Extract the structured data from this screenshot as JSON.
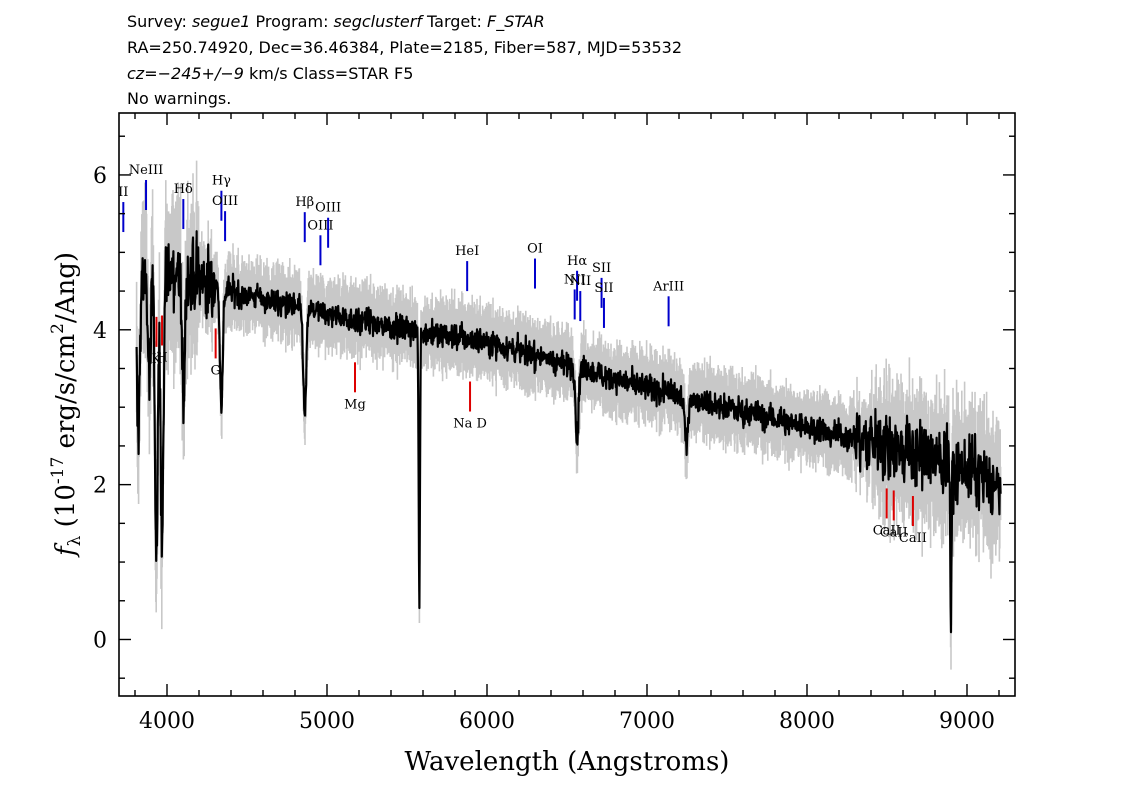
{
  "header": {
    "line1": {
      "survey_label": "Survey: ",
      "survey": "segue1",
      "program_label": " Program: ",
      "program": "segclusterf",
      "target_label": " Target: ",
      "target": "F_STAR"
    },
    "line2": "RA=250.74920, Dec=36.46384, Plate=2185, Fiber=587, MJD=53532",
    "line3": {
      "cz": "cz=−245+/−9",
      "rest": " km/s Class=STAR F5"
    },
    "line4": "No warnings."
  },
  "chart_data": {
    "type": "line",
    "xlabel": "Wavelength (Angstroms)",
    "ylabel": "fλ (10^-17 erg/s/cm^2/Ang)",
    "xlim": [
      3700,
      9300
    ],
    "ylim": [
      -0.73,
      6.8
    ],
    "x_ticks": [
      4000,
      5000,
      6000,
      7000,
      8000,
      9000
    ],
    "y_ticks": [
      0,
      2,
      4,
      6
    ],
    "x_tick_labels": [
      "4000",
      "5000",
      "6000",
      "7000",
      "8000",
      "9000"
    ],
    "y_tick_labels": [
      "0",
      "2",
      "4",
      "6"
    ],
    "grid": false,
    "series": [
      {
        "role": "flux",
        "color": "#000000",
        "continuum": [
          [
            3800,
            4.65
          ],
          [
            4000,
            4.75
          ],
          [
            4500,
            4.45
          ],
          [
            5000,
            4.2
          ],
          [
            5500,
            4.0
          ],
          [
            6000,
            3.85
          ],
          [
            6500,
            3.55
          ],
          [
            7000,
            3.25
          ],
          [
            7500,
            3.0
          ],
          [
            8000,
            2.75
          ],
          [
            8500,
            2.5
          ],
          [
            9000,
            2.2
          ],
          [
            9200,
            1.95
          ]
        ],
        "absorption_features": [
          {
            "x": 3820,
            "y": 2.55
          },
          {
            "x": 3890,
            "y": 3.35
          },
          {
            "x": 3934,
            "y": 0.95
          },
          {
            "x": 3969,
            "y": 1.45
          },
          {
            "x": 4102,
            "y": 3.1
          },
          {
            "x": 4340,
            "y": 3.05
          },
          {
            "x": 4861,
            "y": 2.85
          },
          {
            "x": 5577,
            "y": 0.5
          },
          {
            "x": 6563,
            "y": 2.6
          },
          {
            "x": 7246,
            "y": 2.5
          },
          {
            "x": 8900,
            "y": 0.05
          }
        ]
      },
      {
        "role": "error envelope",
        "color": "#c8c8c8",
        "typical_spread": 0.3
      }
    ],
    "emission_lines": [
      {
        "label": "II",
        "x": 3727
      },
      {
        "label": "NeIII",
        "x": 3869
      },
      {
        "label": "Hδ",
        "x": 4102
      },
      {
        "label": "Hγ",
        "x": 4340
      },
      {
        "label": "OIII",
        "x": 4363
      },
      {
        "label": "Hβ",
        "x": 4861
      },
      {
        "label": "OIII",
        "x": 4959
      },
      {
        "label": "OIII",
        "x": 5007
      },
      {
        "label": "HeI",
        "x": 5876
      },
      {
        "label": "OI",
        "x": 6300
      },
      {
        "label": "NII",
        "x": 6548
      },
      {
        "label": "Hα",
        "x": 6563
      },
      {
        "label": "NII",
        "x": 6583
      },
      {
        "label": "SII",
        "x": 6716
      },
      {
        "label": "SII",
        "x": 6731
      },
      {
        "label": "ArIII",
        "x": 7135
      }
    ],
    "absorption_lines": [
      {
        "label": "K",
        "x": 3934
      },
      {
        "label": "H",
        "x": 3969
      },
      {
        "label": "G",
        "x": 4304
      },
      {
        "label": "Mg",
        "x": 5175
      },
      {
        "label": "Na D",
        "x": 5894
      },
      {
        "label": "CaII",
        "x": 8498
      },
      {
        "label": "CaII",
        "x": 8542
      },
      {
        "label": "CaII",
        "x": 8662
      }
    ],
    "colors": {
      "flux": "#000000",
      "error": "#c8c8c8",
      "emission_marker": "#0000cc",
      "absorption_marker": "#dd0000"
    }
  }
}
